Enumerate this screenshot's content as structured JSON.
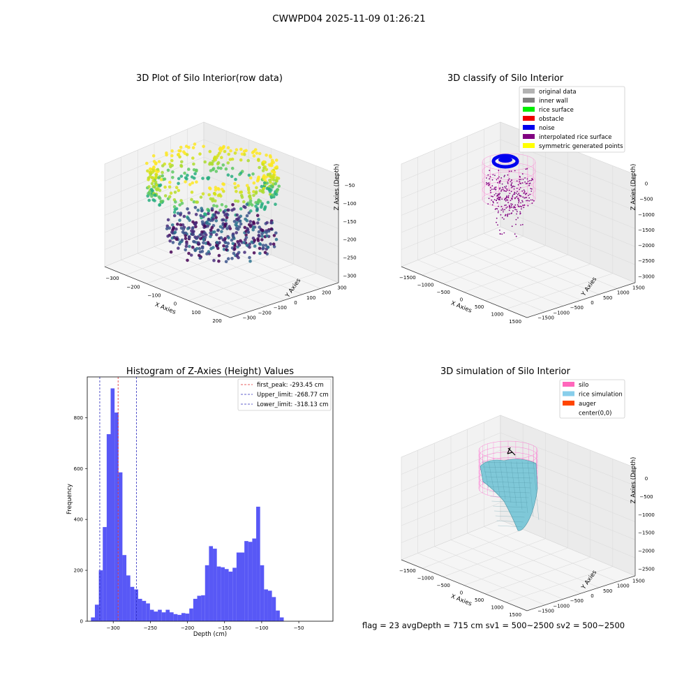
{
  "suptitle": "CWWPD04 2025-11-09 01:26:21",
  "footer": "flag = 23  avgDepth = 715 cm  sv1 = 500~2500  sv2 = 500~2500",
  "colors": {
    "histogram_bar": "#4f4ff5",
    "first_peak_line": "#e32b2b",
    "limit_line": "#2c2cbf",
    "silo_mesh": "#ff66cc",
    "rice_surface": "#7fc8d8",
    "noise": "#0000ee",
    "interpolated": "#800080"
  },
  "chart_data": [
    {
      "id": "raw",
      "type": "scatter",
      "title": "3D Plot of Silo Interior(row data)",
      "xlabel": "X Axies",
      "ylabel": "Y Axies",
      "zlabel": "Z Axies (Depth)",
      "xticks": [
        "−300",
        "−200",
        "−100",
        "0",
        "100",
        "200"
      ],
      "yticks": [
        "−300",
        "−200",
        "−100",
        "0",
        "100",
        "200",
        "300"
      ],
      "zticks": [
        "−50",
        "−100",
        "−150",
        "−200",
        "−250",
        "−300"
      ],
      "colormap": "viridis"
    },
    {
      "id": "classify",
      "type": "scatter",
      "title": "3D classify of Silo Interior",
      "xlabel": "X Axies",
      "ylabel": "Y Axies",
      "zlabel": "Z Axies (Depth)",
      "xticks": [
        "−1500",
        "−1000",
        "−500",
        "0",
        "500",
        "1000",
        "1500"
      ],
      "yticks": [
        "−1500",
        "−1000",
        "−500",
        "0",
        "500",
        "1000",
        "1500"
      ],
      "zticks": [
        "0",
        "−500",
        "−1000",
        "−1500",
        "−2000",
        "−2500",
        "−3000"
      ],
      "legend_position": "top-right",
      "legend": [
        {
          "label": "original data",
          "color": "#b3b3b3"
        },
        {
          "label": "inner wall",
          "color": "#808080"
        },
        {
          "label": "rice surface",
          "color": "#00ee00"
        },
        {
          "label": "obstacle",
          "color": "#ee0000"
        },
        {
          "label": "noise",
          "color": "#0000ee"
        },
        {
          "label": "interpolated rice surface",
          "color": "#800080"
        },
        {
          "label": "symmetric generated points",
          "color": "#ffff00"
        }
      ]
    },
    {
      "id": "hist",
      "type": "bar",
      "title": "Histogram of Z-Axies (Height) Values",
      "xlabel": "Depth (cm)",
      "ylabel": "Frequency",
      "xlim": [
        -335,
        -4
      ],
      "ylim": [
        0,
        960
      ],
      "xticks": [
        -300,
        -250,
        -200,
        -150,
        -100,
        -50
      ],
      "xtick_labels": [
        "−300",
        "−250",
        "−200",
        "−150",
        "−100",
        "−50"
      ],
      "yticks": [
        0,
        200,
        400,
        600,
        800
      ],
      "bin_start": -330,
      "bin_width": 5.3,
      "values": [
        15,
        65,
        200,
        370,
        735,
        915,
        820,
        585,
        260,
        180,
        135,
        125,
        88,
        80,
        70,
        45,
        38,
        45,
        35,
        45,
        35,
        28,
        25,
        32,
        30,
        50,
        88,
        100,
        102,
        220,
        295,
        285,
        215,
        212,
        205,
        195,
        210,
        270,
        270,
        315,
        312,
        325,
        450,
        220,
        125,
        120,
        95,
        42,
        15
      ],
      "lines": [
        {
          "label": "first_peak: -293.45 cm",
          "x": -293.45,
          "color": "#e32b2b"
        },
        {
          "label": "Upper_limit: -268.77 cm",
          "x": -268.77,
          "color": "#2c2cbf"
        },
        {
          "label": "Lower_limit: -318.13 cm",
          "x": -318.13,
          "color": "#2c2cbf"
        }
      ],
      "legend_position": "top-right"
    },
    {
      "id": "sim",
      "type": "scatter",
      "title": "3D simulation of Silo Interior",
      "xlabel": "X Axies",
      "ylabel": "Y Axies",
      "zlabel": "Z Axies (Depth)",
      "xticks": [
        "−1500",
        "−1000",
        "−500",
        "0",
        "500",
        "1000",
        "1500"
      ],
      "yticks": [
        "−1500",
        "−1000",
        "−500",
        "0",
        "500",
        "1000",
        "1500"
      ],
      "zticks": [
        "0",
        "−500",
        "−1000",
        "−1500",
        "−2000",
        "−2500"
      ],
      "legend_position": "top-right",
      "legend": [
        {
          "label": "silo",
          "color": "#ff66bb"
        },
        {
          "label": "rice simulation",
          "color": "#87ceeb"
        },
        {
          "label": "auger",
          "color": "#ff4500"
        },
        {
          "label": "center(0,0)",
          "color": ""
        }
      ]
    }
  ]
}
